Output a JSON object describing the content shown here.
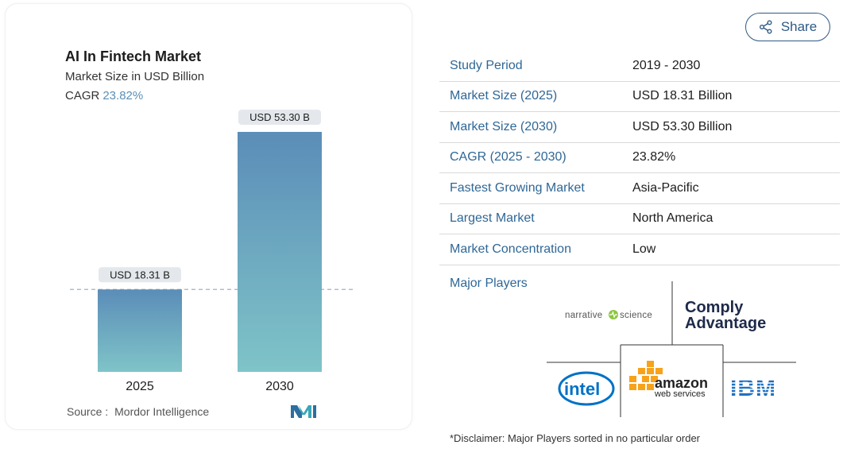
{
  "chart": {
    "title": "AI In Fintech Market",
    "subtitle": "Market Size in USD Billion",
    "cagr_label": "CAGR",
    "cagr_value": "23.82%",
    "source_label": "Source :",
    "source_value": "Mordor Intelligence"
  },
  "chart_data": {
    "type": "bar",
    "categories": [
      "2025",
      "2030"
    ],
    "values": [
      18.31,
      53.3
    ],
    "data_labels": [
      "USD 18.31 B",
      "USD 53.30 B"
    ],
    "title": "AI In Fintech Market",
    "subtitle": "Market Size in USD Billion",
    "xlabel": "",
    "ylabel": "",
    "ylim": [
      0,
      53.3
    ],
    "grid": false,
    "reference_line": 18.31
  },
  "share": {
    "label": "Share",
    "icon": "share-icon"
  },
  "stats": [
    {
      "label": "Study Period",
      "value": "2019 - 2030"
    },
    {
      "label": "Market Size (2025)",
      "value": "USD 18.31 Billion"
    },
    {
      "label": "Market Size (2030)",
      "value": "USD 53.30 Billion"
    },
    {
      "label": "CAGR (2025 - 2030)",
      "value": "23.82%"
    },
    {
      "label": "Fastest Growing Market",
      "value": "Asia-Pacific"
    },
    {
      "label": "Largest Market",
      "value": "North America"
    },
    {
      "label": "Market Concentration",
      "value": "Low"
    }
  ],
  "players": {
    "title": "Major Players",
    "logos": [
      "narrative science",
      "Comply Advantage",
      "intel",
      "amazon web services",
      "IBM"
    ]
  },
  "disclaimer": "*Disclaimer: Major Players sorted in no particular order",
  "colors": {
    "bar_top": "#5b8db8",
    "bar_bottom": "#7fc4c8",
    "label_blue": "#2f6796",
    "accent": "#5a8fb8"
  }
}
